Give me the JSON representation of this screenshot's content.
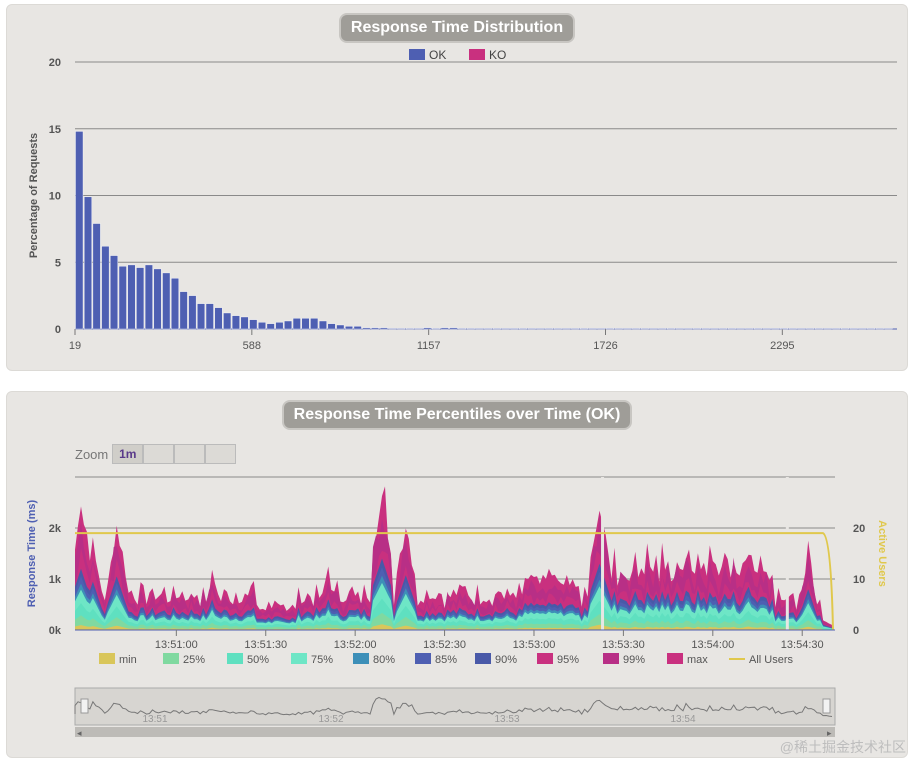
{
  "chart_data": [
    {
      "type": "bar",
      "title": "Response Time Distribution",
      "ylabel": "Percentage of Requests",
      "ylim": [
        0,
        20
      ],
      "yticks": [
        "0",
        "5",
        "10",
        "15",
        "20"
      ],
      "xticks": [
        "19",
        "588",
        "1157",
        "1726",
        "2295"
      ],
      "xlim": [
        19,
        2664
      ],
      "bin_width": 28,
      "legend_position": "top",
      "series": [
        {
          "name": "OK",
          "color": "#4e5fb2",
          "x_start": 19,
          "values": [
            14.8,
            9.9,
            7.9,
            6.2,
            5.5,
            4.7,
            4.8,
            4.6,
            4.8,
            4.5,
            4.2,
            3.8,
            2.8,
            2.5,
            1.9,
            1.9,
            1.6,
            1.2,
            1.0,
            0.9,
            0.7,
            0.5,
            0.4,
            0.5,
            0.6,
            0.8,
            0.8,
            0.8,
            0.6,
            0.4,
            0.3,
            0.2,
            0.2,
            0.1,
            0.1,
            0.1,
            0.05,
            0.05,
            0.05,
            0.05,
            0.1,
            0.05,
            0.1,
            0.1,
            0.05,
            0.05,
            0.05,
            0.05,
            0.05,
            0.05,
            0.05,
            0.05,
            0.05,
            0.05,
            0.05,
            0.05,
            0.05,
            0.05,
            0.05,
            0.05,
            0.05,
            0.05,
            0.05,
            0.05,
            0.05,
            0.05,
            0.05,
            0.05,
            0.05,
            0.05,
            0.05,
            0.05,
            0.05,
            0.05,
            0.05,
            0.05,
            0.05,
            0.05,
            0.05,
            0.05,
            0.05,
            0.05,
            0.05,
            0.05,
            0.05,
            0.05,
            0.05,
            0.05,
            0.05,
            0.05,
            0.05,
            0.05,
            0.05,
            0.05
          ]
        },
        {
          "name": "KO",
          "color": "#c9307f",
          "values": []
        }
      ]
    },
    {
      "type": "area",
      "title": "Response Time Percentiles over Time (OK)",
      "ylabel": "Response Time (ms)",
      "y2label": "Active Users",
      "ylim": [
        0,
        3000
      ],
      "yticks": [
        "0k",
        "1k",
        "2k"
      ],
      "y2lim": [
        0,
        30
      ],
      "y2ticks": [
        "0",
        "10",
        "20"
      ],
      "xticks": [
        "13:51:00",
        "13:51:30",
        "13:52:00",
        "13:52:30",
        "13:53:00",
        "13:53:30",
        "13:54:00",
        "13:54:30"
      ],
      "xlim_seconds": [
        13,
        268
      ],
      "legend": [
        "min",
        "25%",
        "50%",
        "75%",
        "80%",
        "85%",
        "90%",
        "95%",
        "99%",
        "max",
        "All Users"
      ],
      "legend_colors": [
        "#d9c65a",
        "#80d9a0",
        "#5fe0c0",
        "#6ee6c6",
        "#3d8fb8",
        "#4e5fb2",
        "#4959a8",
        "#c9307f",
        "#b82f86",
        "#c9307f",
        "#e0c84c"
      ],
      "active_users": 19,
      "peaks_ms": [
        [
          2,
          2400
        ],
        [
          6,
          1900
        ],
        [
          14,
          2100
        ],
        [
          46,
          1200
        ],
        [
          85,
          1200
        ],
        [
          103,
          2800
        ],
        [
          111,
          2150
        ],
        [
          176,
          2600
        ],
        [
          202,
          1500
        ],
        [
          226,
          1700
        ],
        [
          246,
          1600
        ],
        [
          268,
          2200
        ]
      ],
      "zoom": {
        "label": "Zoom",
        "buttons": [
          "1m",
          "",
          "",
          ""
        ],
        "active": "1m"
      },
      "navigator_ticks": [
        "13:51",
        "13:52",
        "13:53",
        "13:54"
      ]
    }
  ],
  "watermark": "@稀土掘金技术社区"
}
